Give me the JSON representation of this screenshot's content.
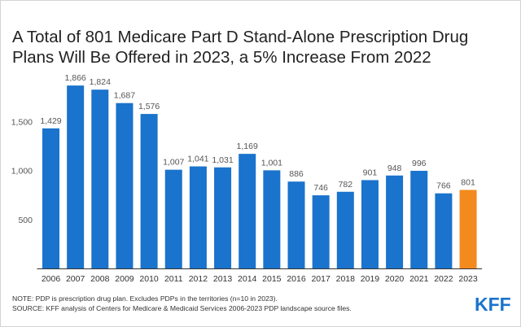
{
  "title": "A Total of 801 Medicare Part D Stand-Alone Prescription Drug Plans Will Be Offered in 2023, a 5% Increase From 2022",
  "note": "NOTE: PDP is prescription drug plan. Excludes PDPs in the territories (n=10 in 2023).",
  "source": "SOURCE: KFF analysis of Centers for Medicare & Medicaid Services 2006-2023 PDP landscape source files.",
  "logo_text": "KFF",
  "colors": {
    "bar": "#1a73cc",
    "highlight": "#f28a1e",
    "axis": "#333333",
    "label": "#555555",
    "logo": "#1a73cc"
  },
  "chart_data": {
    "type": "bar",
    "categories": [
      "2006",
      "2007",
      "2008",
      "2009",
      "2010",
      "2011",
      "2012",
      "2013",
      "2014",
      "2015",
      "2016",
      "2017",
      "2018",
      "2019",
      "2020",
      "2021",
      "2022",
      "2023"
    ],
    "values": [
      1429,
      1866,
      1824,
      1687,
      1576,
      1007,
      1041,
      1031,
      1169,
      1001,
      886,
      746,
      782,
      901,
      948,
      996,
      766,
      801
    ],
    "value_labels": [
      "1,429",
      "1,866",
      "1,824",
      "1,687",
      "1,576",
      "1,007",
      "1,041",
      "1,031",
      "1,169",
      "1,001",
      "886",
      "746",
      "782",
      "901",
      "948",
      "996",
      "766",
      "801"
    ],
    "highlight_category": "2023",
    "yticks": [
      500,
      1000,
      1500
    ],
    "ytick_labels": [
      "500",
      "1,000",
      "1,500"
    ],
    "ylim": [
      0,
      2000
    ],
    "xlabel": "",
    "ylabel": "",
    "grid": false,
    "legend": "none"
  }
}
